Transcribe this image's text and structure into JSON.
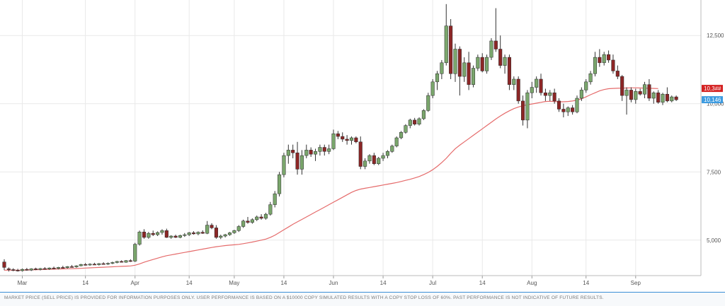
{
  "chart_data": {
    "type": "candlestick",
    "x_tick_labels": [
      "Mar",
      "14",
      "Apr",
      "14",
      "May",
      "14",
      "Jun",
      "14",
      "Jul",
      "14",
      "Aug",
      "14",
      "Sep"
    ],
    "y_tick_labels": [
      "5,000",
      "7,500",
      "10,000",
      "12,500"
    ],
    "y_ticks": [
      5000,
      7500,
      10000,
      12500
    ],
    "ylim": [
      3700,
      13800
    ],
    "grid": true,
    "series": [
      {
        "type": "candlestick",
        "ohlc": [
          [
            4200,
            4300,
            3900,
            4000
          ],
          [
            3950,
            4000,
            3850,
            3920
          ],
          [
            3920,
            3970,
            3860,
            3900
          ],
          [
            3900,
            3950,
            3850,
            3880
          ],
          [
            3880,
            3960,
            3850,
            3930
          ],
          [
            3930,
            3980,
            3880,
            3900
          ],
          [
            3900,
            3970,
            3870,
            3950
          ],
          [
            3950,
            3990,
            3900,
            3920
          ],
          [
            3920,
            3980,
            3890,
            3960
          ],
          [
            3960,
            4010,
            3920,
            3940
          ],
          [
            3940,
            4000,
            3910,
            3980
          ],
          [
            3980,
            4030,
            3940,
            3960
          ],
          [
            3960,
            4020,
            3930,
            4000
          ],
          [
            4000,
            4060,
            3970,
            3990
          ],
          [
            3990,
            4050,
            3960,
            4030
          ],
          [
            4030,
            4090,
            4000,
            4020
          ],
          [
            4020,
            4080,
            3990,
            4060
          ],
          [
            4060,
            4130,
            4040,
            4110
          ],
          [
            4110,
            4160,
            4070,
            4090
          ],
          [
            4090,
            4150,
            4060,
            4120
          ],
          [
            4120,
            4170,
            4090,
            4100
          ],
          [
            4100,
            4160,
            4070,
            4140
          ],
          [
            4140,
            4190,
            4110,
            4120
          ],
          [
            4120,
            4180,
            4090,
            4150
          ],
          [
            4150,
            4210,
            4120,
            4180
          ],
          [
            4180,
            4240,
            4150,
            4220
          ],
          [
            4220,
            4260,
            4180,
            4190
          ],
          [
            4190,
            4270,
            4170,
            4250
          ],
          [
            4250,
            4300,
            4200,
            4230
          ],
          [
            4230,
            4900,
            4200,
            4850
          ],
          [
            4850,
            5350,
            4800,
            5300
          ],
          [
            5300,
            5400,
            5050,
            5100
          ],
          [
            5100,
            5300,
            5050,
            5250
          ],
          [
            5250,
            5350,
            5150,
            5200
          ],
          [
            5200,
            5320,
            5150,
            5280
          ],
          [
            5280,
            5400,
            5200,
            5350
          ],
          [
            5350,
            5420,
            5080,
            5100
          ],
          [
            5100,
            5180,
            5050,
            5150
          ],
          [
            5150,
            5200,
            5080,
            5100
          ],
          [
            5100,
            5200,
            5070,
            5170
          ],
          [
            5170,
            5260,
            5120,
            5200
          ],
          [
            5200,
            5300,
            5150,
            5270
          ],
          [
            5270,
            5330,
            5200,
            5230
          ],
          [
            5230,
            5320,
            5180,
            5290
          ],
          [
            5290,
            5360,
            5230,
            5250
          ],
          [
            5250,
            5700,
            5220,
            5550
          ],
          [
            5550,
            5620,
            5400,
            5450
          ],
          [
            5450,
            5550,
            5050,
            5100
          ],
          [
            5100,
            5200,
            5040,
            5150
          ],
          [
            5150,
            5230,
            5100,
            5200
          ],
          [
            5200,
            5300,
            5160,
            5270
          ],
          [
            5270,
            5380,
            5230,
            5350
          ],
          [
            5350,
            5550,
            5300,
            5500
          ],
          [
            5500,
            5750,
            5450,
            5700
          ],
          [
            5700,
            5850,
            5600,
            5650
          ],
          [
            5650,
            5800,
            5600,
            5750
          ],
          [
            5750,
            5900,
            5700,
            5850
          ],
          [
            5850,
            5950,
            5750,
            5800
          ],
          [
            5800,
            6000,
            5750,
            5950
          ],
          [
            5950,
            6400,
            5900,
            6300
          ],
          [
            6300,
            6800,
            6200,
            6700
          ],
          [
            6700,
            7500,
            6600,
            7400
          ],
          [
            7400,
            8200,
            7300,
            8100
          ],
          [
            8100,
            8500,
            7800,
            8300
          ],
          [
            8300,
            8500,
            8000,
            8200
          ],
          [
            8200,
            8600,
            7400,
            7600
          ],
          [
            7600,
            8300,
            7400,
            8100
          ],
          [
            8100,
            8500,
            8000,
            8300
          ],
          [
            8300,
            8400,
            8050,
            8150
          ],
          [
            8150,
            8350,
            7900,
            8250
          ],
          [
            8250,
            8500,
            8100,
            8400
          ],
          [
            8400,
            8500,
            8100,
            8250
          ],
          [
            8250,
            8500,
            8150,
            8350
          ],
          [
            8350,
            9050,
            8300,
            8900
          ],
          [
            8900,
            9000,
            8700,
            8800
          ],
          [
            8800,
            8950,
            8600,
            8700
          ],
          [
            8700,
            8850,
            8500,
            8650
          ],
          [
            8650,
            8800,
            8500,
            8750
          ],
          [
            8750,
            8800,
            8550,
            8600
          ],
          [
            8600,
            8800,
            7600,
            7700
          ],
          [
            7700,
            8000,
            7600,
            7900
          ],
          [
            7900,
            8150,
            7800,
            8100
          ],
          [
            8100,
            8200,
            7750,
            7800
          ],
          [
            7800,
            8050,
            7750,
            8000
          ],
          [
            8000,
            8200,
            7900,
            8100
          ],
          [
            8100,
            8300,
            8000,
            8250
          ],
          [
            8250,
            8500,
            8200,
            8450
          ],
          [
            8450,
            8800,
            8400,
            8750
          ],
          [
            8750,
            9000,
            8700,
            8950
          ],
          [
            8950,
            9250,
            8900,
            9200
          ],
          [
            9200,
            9450,
            9100,
            9400
          ],
          [
            9400,
            9480,
            9200,
            9250
          ],
          [
            9250,
            9500,
            9200,
            9450
          ],
          [
            9450,
            9800,
            9400,
            9750
          ],
          [
            9750,
            10400,
            9700,
            10300
          ],
          [
            10300,
            10900,
            10200,
            10800
          ],
          [
            10800,
            11200,
            10500,
            11100
          ],
          [
            11100,
            11600,
            10900,
            11500
          ],
          [
            11500,
            13650,
            11400,
            12850
          ],
          [
            12850,
            13100,
            10900,
            11100
          ],
          [
            11100,
            12200,
            10800,
            12000
          ],
          [
            12000,
            12100,
            10300,
            11000
          ],
          [
            11000,
            11700,
            10800,
            11500
          ],
          [
            11500,
            11900,
            10500,
            10700
          ],
          [
            10700,
            11400,
            10600,
            11300
          ],
          [
            11300,
            11800,
            11200,
            11700
          ],
          [
            11700,
            11850,
            11150,
            11200
          ],
          [
            11200,
            11800,
            11100,
            11700
          ],
          [
            11700,
            12400,
            11600,
            12300
          ],
          [
            12300,
            13500,
            11900,
            12000
          ],
          [
            12000,
            12500,
            11300,
            11400
          ],
          [
            11400,
            11800,
            11100,
            11700
          ],
          [
            11700,
            11800,
            10500,
            10700
          ],
          [
            10700,
            11000,
            10500,
            10900
          ],
          [
            10900,
            11000,
            10000,
            10100
          ],
          [
            10100,
            10300,
            9200,
            9400
          ],
          [
            9400,
            10500,
            9100,
            10400
          ],
          [
            10400,
            10800,
            10200,
            10600
          ],
          [
            10600,
            11000,
            10400,
            10900
          ],
          [
            10900,
            11100,
            10300,
            10400
          ],
          [
            10400,
            10550,
            10100,
            10300
          ],
          [
            10300,
            10500,
            10100,
            10400
          ],
          [
            10400,
            10550,
            10000,
            10100
          ],
          [
            10100,
            10200,
            9700,
            9800
          ],
          [
            9800,
            10000,
            9500,
            9700
          ],
          [
            9700,
            9900,
            9550,
            9850
          ],
          [
            9850,
            9950,
            9600,
            9700
          ],
          [
            9700,
            10300,
            9650,
            10200
          ],
          [
            10200,
            10600,
            10100,
            10500
          ],
          [
            10500,
            10900,
            10400,
            10800
          ],
          [
            10800,
            11200,
            10700,
            11100
          ],
          [
            11100,
            11900,
            11000,
            11700
          ],
          [
            11700,
            12000,
            11350,
            11500
          ],
          [
            11500,
            11900,
            11400,
            11800
          ],
          [
            11800,
            11950,
            11500,
            11600
          ],
          [
            11600,
            11800,
            11100,
            11200
          ],
          [
            11200,
            11400,
            10900,
            11000
          ],
          [
            11000,
            11050,
            10100,
            10300
          ],
          [
            10300,
            10600,
            9600,
            10500
          ],
          [
            10500,
            10600,
            10050,
            10150
          ],
          [
            10150,
            10550,
            10000,
            10450
          ],
          [
            10450,
            10550,
            10300,
            10350
          ],
          [
            10350,
            10800,
            10200,
            10700
          ],
          [
            10700,
            10900,
            10100,
            10200
          ],
          [
            10200,
            10450,
            10000,
            10400
          ],
          [
            10400,
            10500,
            10000,
            10050
          ],
          [
            10050,
            10400,
            9950,
            10350
          ],
          [
            10350,
            10600,
            10050,
            10100
          ],
          [
            10100,
            10300,
            10050,
            10250
          ],
          [
            10250,
            10300,
            10100,
            10146
          ]
        ]
      },
      {
        "type": "line",
        "values": [
          3900,
          3900,
          3900,
          3900,
          3900,
          3905,
          3910,
          3915,
          3920,
          3925,
          3930,
          3935,
          3940,
          3945,
          3950,
          3955,
          3960,
          3968,
          3976,
          3984,
          3992,
          4000,
          4008,
          4016,
          4024,
          4032,
          4040,
          4048,
          4056,
          4080,
          4130,
          4190,
          4240,
          4290,
          4340,
          4390,
          4430,
          4460,
          4490,
          4520,
          4550,
          4580,
          4610,
          4640,
          4670,
          4700,
          4730,
          4760,
          4780,
          4800,
          4815,
          4830,
          4845,
          4870,
          4900,
          4930,
          4965,
          5000,
          5040,
          5100,
          5180,
          5280,
          5380,
          5480,
          5580,
          5670,
          5760,
          5850,
          5940,
          6030,
          6120,
          6210,
          6300,
          6390,
          6480,
          6570,
          6660,
          6750,
          6820,
          6870,
          6900,
          6930,
          6960,
          6990,
          7020,
          7050,
          7080,
          7110,
          7150,
          7190,
          7230,
          7280,
          7330,
          7400,
          7480,
          7580,
          7700,
          7840,
          8000,
          8180,
          8350,
          8480,
          8600,
          8720,
          8840,
          8960,
          9080,
          9200,
          9320,
          9440,
          9550,
          9650,
          9740,
          9820,
          9880,
          9930,
          9960,
          9990,
          10020,
          10050,
          10080,
          10090,
          10080,
          10070,
          10070,
          10080,
          10100,
          10130,
          10180,
          10250,
          10330,
          10400,
          10470,
          10520,
          10550,
          10560,
          10565,
          10570,
          10575,
          10580,
          10580,
          10575,
          10570,
          10565,
          10560,
          10555
        ]
      }
    ],
    "price_badges": [
      {
        "label": "10,3##",
        "value": 10560,
        "color": "#d42020"
      },
      {
        "label": "10,146",
        "value": 10146,
        "color": "#3d9be0"
      }
    ],
    "colors": {
      "up": "#7aa66c",
      "down": "#8c2626",
      "ma": "#e56b6b",
      "grid": "#e9e9e9"
    }
  },
  "disclaimer": "MARKET PRICE (SELL PRICE) IS PROVIDED FOR INFORMATION PURPOSES ONLY. USER PERFORMANCE IS BASED ON A $10000 COPY SIMULATED RESULTS WITH A COPY STOP LOSS OF 60%. PAST PERFORMANCE IS NOT INDICATIVE OF FUTURE RESULTS."
}
